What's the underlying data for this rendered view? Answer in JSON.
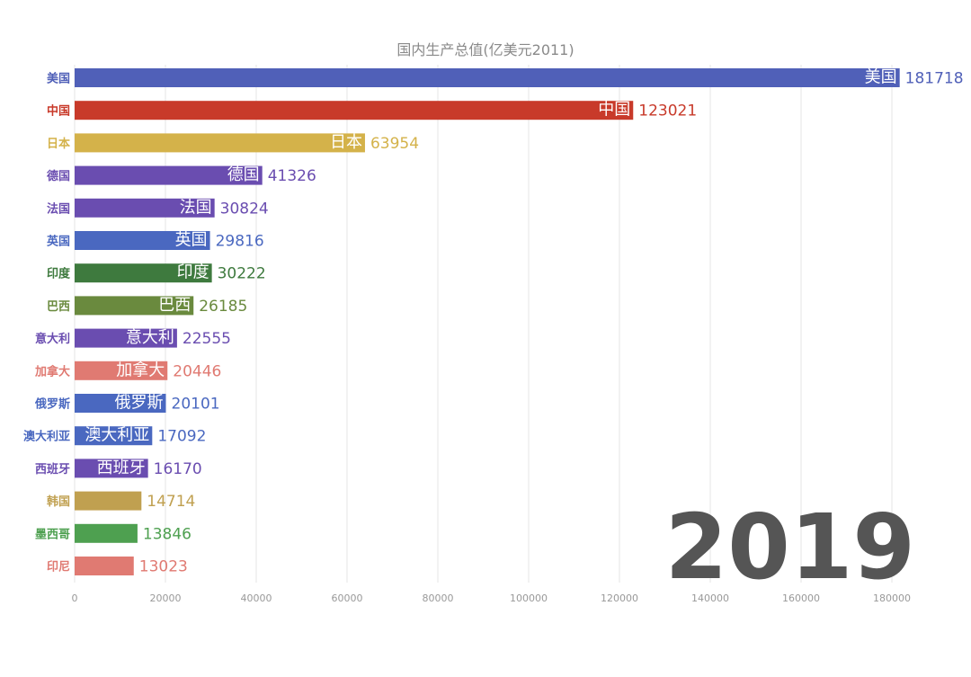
{
  "chart_data": {
    "type": "bar",
    "orientation": "horizontal",
    "title": "国内生产总值(亿美元2011)",
    "year": "2019",
    "categories": [
      "美国",
      "中国",
      "日本",
      "德国",
      "法国",
      "英国",
      "印度",
      "巴西",
      "意大利",
      "加拿大",
      "俄罗斯",
      "澳大利亚",
      "西班牙",
      "韩国",
      "墨西哥",
      "印尼"
    ],
    "values": [
      181718,
      123021,
      63954,
      41326,
      30824,
      29816,
      30222,
      26185,
      22555,
      20446,
      20101,
      17092,
      16170,
      14714,
      13846,
      13023
    ],
    "colors": [
      "#5060b8",
      "#c83a2a",
      "#d4b24a",
      "#6a4db0",
      "#6a4db0",
      "#4a68c0",
      "#3e7a3e",
      "#6a8a3e",
      "#6a4db0",
      "#e07a72",
      "#4a68c0",
      "#4a68c0",
      "#6a4db0",
      "#c0a050",
      "#4ea050",
      "#e07a72"
    ],
    "inbar_labels": [
      "美国",
      "中国",
      "日本",
      "德国",
      "法国",
      "英国",
      "印度",
      "巴西",
      "意大利",
      "加拿大",
      "俄罗斯",
      "澳大利亚",
      "西班牙",
      "",
      "",
      ""
    ],
    "xlim": [
      0,
      180000
    ],
    "xticks": [
      0,
      20000,
      40000,
      60000,
      80000,
      100000,
      120000,
      140000,
      160000,
      180000
    ],
    "grid": true,
    "xlabel": "",
    "ylabel": ""
  }
}
